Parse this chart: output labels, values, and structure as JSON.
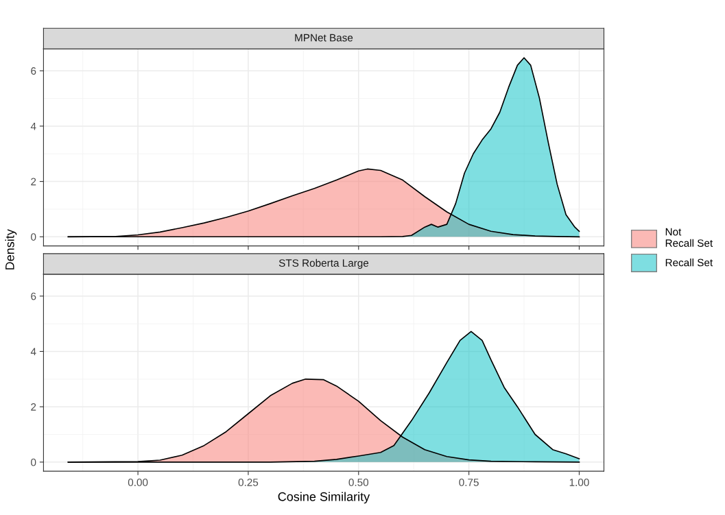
{
  "chart_data": [
    {
      "type": "area",
      "title": "MPNet Base",
      "ylabel": "Density",
      "xlim": [
        -0.214,
        1.056
      ],
      "ylim": [
        -0.33,
        6.79
      ],
      "xticks": [
        0,
        0.25,
        0.5,
        0.75,
        1
      ],
      "yticks": [
        0,
        2,
        4,
        6
      ],
      "tick_labels": "y",
      "grid": true,
      "legend": "right",
      "series": [
        {
          "name": "Not\nRecall Set",
          "color": "#F8766D",
          "x": [
            -0.158,
            -0.05,
            0.0,
            0.05,
            0.1,
            0.15,
            0.2,
            0.25,
            0.3,
            0.35,
            0.4,
            0.45,
            0.5,
            0.52,
            0.55,
            0.6,
            0.65,
            0.7,
            0.75,
            0.8,
            0.85,
            0.9,
            0.95,
            1.0
          ],
          "values": [
            0,
            0.01,
            0.07,
            0.17,
            0.33,
            0.5,
            0.7,
            0.93,
            1.2,
            1.48,
            1.75,
            2.05,
            2.38,
            2.45,
            2.4,
            2.05,
            1.45,
            0.9,
            0.45,
            0.2,
            0.08,
            0.03,
            0.01,
            0
          ]
        },
        {
          "name": "Recall Set",
          "color": "#00BFC4",
          "x": [
            -0.158,
            0.55,
            0.6,
            0.62,
            0.65,
            0.665,
            0.68,
            0.7,
            0.72,
            0.74,
            0.76,
            0.78,
            0.8,
            0.82,
            0.84,
            0.86,
            0.875,
            0.89,
            0.91,
            0.93,
            0.95,
            0.97,
            0.99,
            1.0
          ],
          "values": [
            0,
            0,
            0.01,
            0.05,
            0.35,
            0.45,
            0.35,
            0.45,
            1.2,
            2.3,
            3.0,
            3.5,
            3.9,
            4.5,
            5.4,
            6.2,
            6.47,
            6.2,
            5.0,
            3.4,
            1.9,
            0.8,
            0.35,
            0.2
          ]
        }
      ]
    },
    {
      "type": "area",
      "title": "STS Roberta Large",
      "xlabel": "Cosine Similarity",
      "xlim": [
        -0.214,
        1.056
      ],
      "ylim": [
        -0.33,
        6.79
      ],
      "xticks": [
        {
          "value": 0,
          "label": "0.00"
        },
        {
          "value": 0.25,
          "label": "0.25"
        },
        {
          "value": 0.5,
          "label": "0.50"
        },
        {
          "value": 0.75,
          "label": "0.75"
        },
        {
          "value": 1,
          "label": "1.00"
        }
      ],
      "yticks": [
        0,
        2,
        4,
        6
      ],
      "grid": true,
      "series": [
        {
          "color": "#F8766D",
          "x": [
            -0.158,
            0.0,
            0.05,
            0.1,
            0.15,
            0.2,
            0.25,
            0.3,
            0.35,
            0.38,
            0.42,
            0.45,
            0.5,
            0.55,
            0.6,
            0.65,
            0.7,
            0.75,
            0.8,
            0.9,
            1.0
          ],
          "values": [
            0,
            0.02,
            0.07,
            0.25,
            0.6,
            1.1,
            1.75,
            2.4,
            2.85,
            3.0,
            2.98,
            2.75,
            2.2,
            1.5,
            0.9,
            0.45,
            0.2,
            0.08,
            0.03,
            0.01,
            0
          ]
        },
        {
          "color": "#00BFC4",
          "x": [
            -0.158,
            0.3,
            0.4,
            0.45,
            0.5,
            0.55,
            0.58,
            0.62,
            0.66,
            0.7,
            0.73,
            0.755,
            0.78,
            0.8,
            0.83,
            0.86,
            0.9,
            0.94,
            0.97,
            1.0
          ],
          "values": [
            0,
            0,
            0.03,
            0.1,
            0.22,
            0.35,
            0.6,
            1.5,
            2.5,
            3.6,
            4.4,
            4.72,
            4.4,
            3.7,
            2.7,
            2.0,
            1.0,
            0.45,
            0.3,
            0.12
          ]
        }
      ]
    }
  ]
}
